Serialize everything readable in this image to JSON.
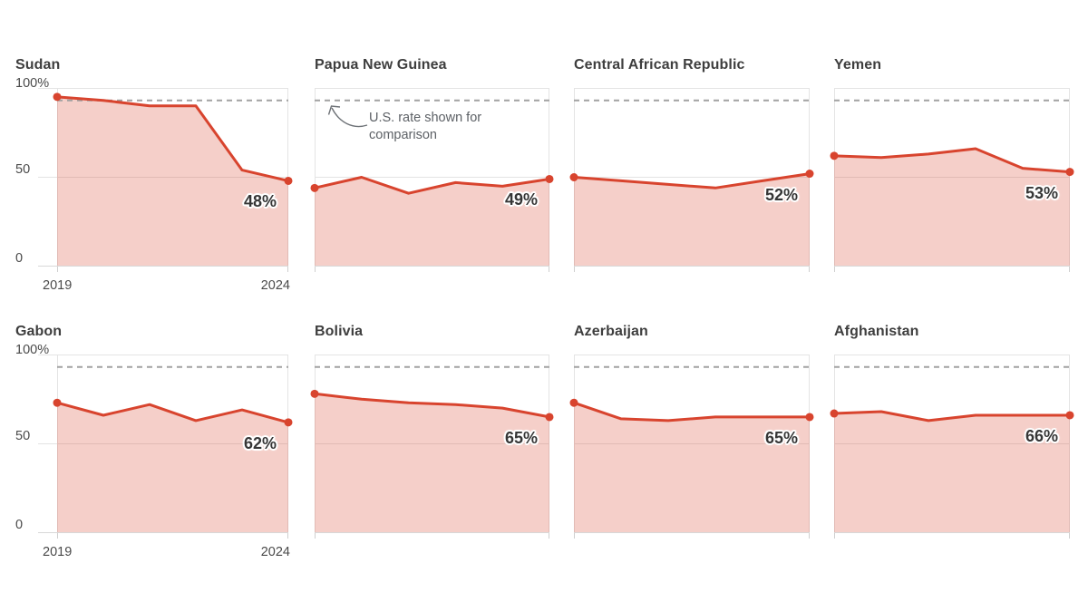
{
  "chart_data": {
    "type": "area",
    "title": "",
    "x": [
      2019,
      2020,
      2021,
      2022,
      2023,
      2024
    ],
    "x_axis": {
      "start_label": "2019",
      "end_label": "2024"
    },
    "y_axis": {
      "ylim": [
        0,
        100
      ],
      "ticks": [
        {
          "label": "100%",
          "value": 100
        },
        {
          "label": "50",
          "value": 50
        },
        {
          "label": "0",
          "value": 0
        }
      ]
    },
    "us_comparison": {
      "value": 93,
      "annotation_line1": "U.S. rate shown for",
      "annotation_line2": "comparison"
    },
    "panels": [
      {
        "name": "Sudan",
        "values": [
          95,
          93,
          90,
          90,
          54,
          48
        ],
        "end_label": "48%"
      },
      {
        "name": "Papua New Guinea",
        "values": [
          44,
          50,
          41,
          47,
          45,
          49
        ],
        "end_label": "49%"
      },
      {
        "name": "Central African Republic",
        "values": [
          50,
          48,
          46,
          44,
          48,
          52
        ],
        "end_label": "52%"
      },
      {
        "name": "Yemen",
        "values": [
          62,
          61,
          63,
          66,
          55,
          53
        ],
        "end_label": "53%"
      },
      {
        "name": "Gabon",
        "values": [
          73,
          66,
          72,
          63,
          69,
          62
        ],
        "end_label": "62%"
      },
      {
        "name": "Bolivia",
        "values": [
          78,
          75,
          73,
          72,
          70,
          65
        ],
        "end_label": "65%"
      },
      {
        "name": "Azerbaijan",
        "values": [
          73,
          64,
          63,
          65,
          65,
          65
        ],
        "end_label": "65%"
      },
      {
        "name": "Afghanistan",
        "values": [
          67,
          68,
          63,
          66,
          66,
          66
        ],
        "end_label": "66%"
      }
    ],
    "colors": {
      "line": "#d8442e",
      "fill_rgba": "rgba(216,68,46,0.26)",
      "dashed": "#a2a2a2",
      "grid": "#e4e4e4",
      "axis": "#d8d8d8",
      "tick_mark": "#cfcfcf",
      "title_text": "#3e3e3e",
      "tick_label": "#4a4a4a",
      "value_label": "#363636",
      "annotation": "#5d6166"
    },
    "layout": {
      "grid": "4x2 small multiples",
      "y_labels_on": "first column only",
      "x_labels_on": "first column only",
      "legend": "none",
      "gridlines": "horizontal at 0, 50, 100"
    }
  }
}
